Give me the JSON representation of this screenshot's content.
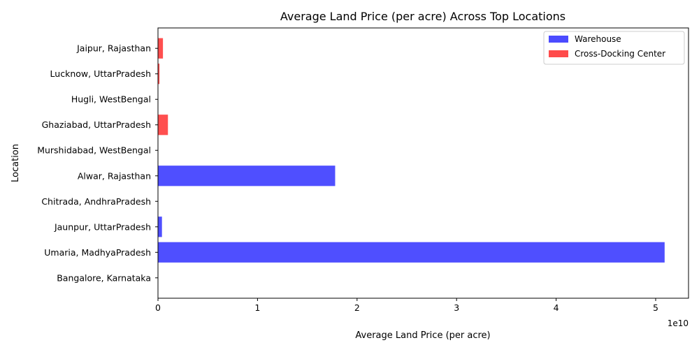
{
  "chart_data": {
    "type": "bar",
    "orientation": "horizontal",
    "title": "Average Land Price (per acre) Across Top Locations",
    "xlabel": "Average Land Price (per acre)",
    "ylabel": "Location",
    "x_offset_text": "1e10",
    "x_scale_multiplier": 10000000000,
    "xlim": [
      0,
      53300000000
    ],
    "xticks": [
      0,
      1,
      2,
      3,
      4,
      5
    ],
    "grid": false,
    "legend_position": "top-right",
    "categories": [
      "Bangalore, Karnataka",
      "Umaria, MadhyaPradesh",
      "Jaunpur, UttarPradesh",
      "Chitrada, AndhraPradesh",
      "Alwar, Rajasthan",
      "Murshidabad, WestBengal",
      "Ghaziabad, UttarPradesh",
      "Hugli, WestBengal",
      "Lucknow, UttarPradesh",
      "Jaipur, Rajasthan"
    ],
    "series": [
      {
        "name": "Warehouse",
        "color": "#4b4bff",
        "values": [
          0,
          50900000000,
          400000000,
          0,
          17800000000,
          0,
          null,
          null,
          null,
          null
        ]
      },
      {
        "name": "Cross-Docking Center",
        "color": "#ff4b4b",
        "values": [
          null,
          null,
          null,
          null,
          null,
          null,
          1000000000,
          0,
          150000000,
          500000000
        ]
      }
    ]
  }
}
